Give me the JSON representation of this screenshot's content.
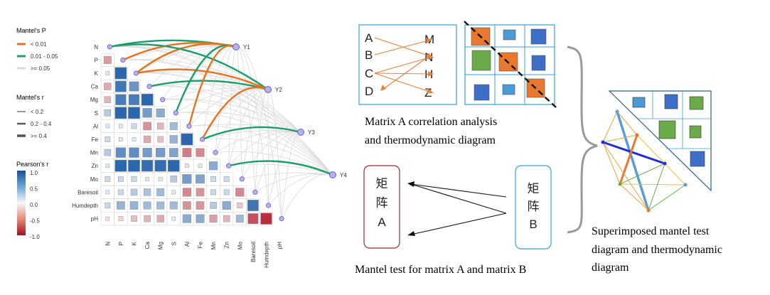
{
  "legend": {
    "mantel_p_title": "Mantel's P",
    "mantel_p_items": [
      {
        "label": "< 0.01",
        "color": "#E8711D"
      },
      {
        "label": "0.01 - 0.05",
        "color": "#1A9E6A"
      },
      {
        "label": ">= 0.05",
        "color": "#D9D9D9"
      }
    ],
    "mantel_r_title": "Mantel's r",
    "mantel_r_items": [
      {
        "label": "< 0.2"
      },
      {
        "label": "0.2 - 0.4"
      },
      {
        "label": ">= 0.4"
      }
    ],
    "pearson_title": "Pearson's r",
    "pearson_ticks": [
      "1.0",
      "0.5",
      "0.0",
      "-0.5",
      "-1.0"
    ],
    "pearson_colors": {
      "high": "#1F5FA8",
      "mid": "#F7F7F7",
      "low": "#B2182B"
    }
  },
  "heatmap": {
    "variables": [
      "N",
      "P",
      "K",
      "Ca",
      "Mg",
      "S",
      "Al",
      "Fe",
      "Mn",
      "Zn",
      "Mo",
      "Baresoil",
      "Humdepth",
      "pH"
    ],
    "targets": [
      "Y1",
      "Y2",
      "Y3",
      "Y4"
    ]
  },
  "mantel_links": [
    {
      "from": "N",
      "to": "Y1",
      "class": "0.01 - 0.05"
    },
    {
      "from": "P",
      "to": "Y1",
      "class": "< 0.01"
    },
    {
      "from": "K",
      "to": "Y1",
      "class": "< 0.01"
    },
    {
      "from": "N",
      "to": "Y2",
      "class": "0.01 - 0.05"
    },
    {
      "from": "K",
      "to": "Y2",
      "class": "< 0.01"
    },
    {
      "from": "Ca",
      "to": "Y2",
      "class": "0.01 - 0.05"
    },
    {
      "from": "S",
      "to": "Y1",
      "class": "0.01 - 0.05"
    },
    {
      "from": "Al",
      "to": "Y1",
      "class": "< 0.01"
    },
    {
      "from": "Fe",
      "to": "Y2",
      "class": "< 0.01"
    },
    {
      "from": "Fe",
      "to": "Y3",
      "class": "0.01 - 0.05"
    },
    {
      "from": "Zn",
      "to": "Y4",
      "class": "0.01 - 0.05"
    }
  ],
  "matrix_a_diagram": {
    "left_letters": [
      "A",
      "B",
      "C",
      "D"
    ],
    "right_letters": [
      "M",
      "N",
      "H",
      "Z"
    ],
    "caption_line1": "Matrix A correlation analysis",
    "caption_line2": "and thermodynamic diagram"
  },
  "mantel_diagram": {
    "box_a_chars": [
      "矩",
      "阵",
      "A"
    ],
    "box_b_chars": [
      "矩",
      "阵",
      "B"
    ],
    "caption": "Mantel test for matrix A and matrix B"
  },
  "superimposed": {
    "caption_line1": "Superimposed mantel test",
    "caption_line2": "diagram and thermodynamic",
    "caption_line3": "diagram"
  }
}
